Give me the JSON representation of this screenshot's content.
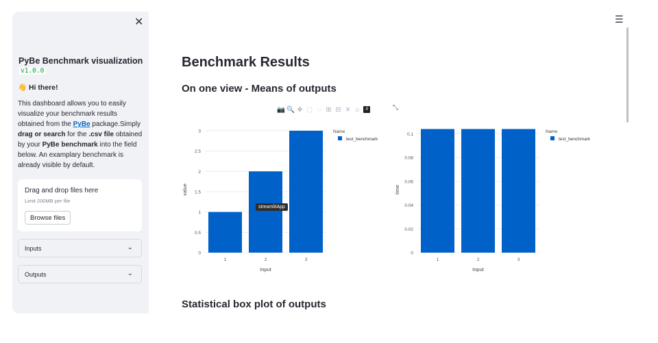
{
  "sidebar": {
    "title": "PyBe Benchmark visualization",
    "version": "v1.0.0",
    "greeting": "👋 Hi there!",
    "desc": {
      "p1": "This dashboard allows you to easily visualize your benchmark results obtained from the ",
      "link": "PyBe",
      "p2": " package.Simply ",
      "b1": "drag or search",
      "p3": " for the ",
      "b2": ".csv file",
      "p4": " obtained by your ",
      "b3": "PyBe benchmark",
      "p5": " into the field below. An examplary benchmark is already visible by default."
    },
    "upload": {
      "title": "Drag and drop files here",
      "limit": "Limit 200MB per file",
      "button": "Browse files"
    },
    "expanders": [
      "Inputs",
      "Outputs"
    ],
    "close_glyph": "✕"
  },
  "main": {
    "title": "Benchmark Results",
    "section1": "On one view - Means of outputs",
    "section2": "Statistical box plot of outputs",
    "menu_glyph": "☰"
  },
  "toolbar_icons": [
    "camera-icon",
    "zoom-icon",
    "pan-icon",
    "box-select-icon",
    "lasso-icon",
    "zoom-in-icon",
    "zoom-out-icon",
    "autoscale-icon",
    "home-icon",
    "plotly-logo"
  ],
  "tooltip": "streamlitApp",
  "chart_data": [
    {
      "type": "bar",
      "categories": [
        "1",
        "2",
        "3"
      ],
      "series": [
        {
          "name": "test_benchmark",
          "values": [
            1,
            2,
            3
          ]
        }
      ],
      "xlabel": "Input",
      "ylabel": "value",
      "ylim": [
        0,
        3.1
      ],
      "yticks": [
        "0",
        "0.5",
        "1",
        "1.5",
        "2",
        "2.5",
        "3"
      ],
      "ytick_values": [
        0,
        0.5,
        1,
        1.5,
        2,
        2.5,
        3
      ],
      "legend_title": "Name",
      "color": "#0061c9",
      "grid": true
    },
    {
      "type": "bar",
      "categories": [
        "1",
        "2",
        "3"
      ],
      "series": [
        {
          "name": "test_benchmark",
          "values": [
            0.104,
            0.104,
            0.104
          ]
        }
      ],
      "xlabel": "Input",
      "ylabel": "time",
      "ylim": [
        0,
        0.106
      ],
      "yticks": [
        "0",
        "0.02",
        "0.04",
        "0.06",
        "0.08",
        "0.1"
      ],
      "ytick_values": [
        0,
        0.02,
        0.04,
        0.06,
        0.08,
        0.1
      ],
      "legend_title": "Name",
      "color": "#0061c9",
      "grid": true
    }
  ]
}
